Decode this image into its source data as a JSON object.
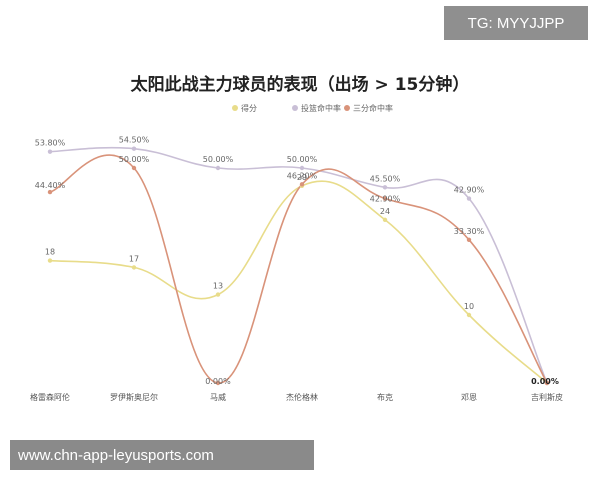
{
  "watermark_top": "TG: MYYJJPP",
  "watermark_bottom": "www.chn-app-leyusports.com",
  "chart_data": {
    "type": "line",
    "title": "太阳此战主力球员的表现（出场 > 15分钟）",
    "legend_position": "top",
    "grid": false,
    "categories": [
      "格雷森阿伦",
      "罗伊斯奥尼尔",
      "马威",
      "杰伦格林",
      "布克",
      "邓恩",
      "吉利斯皮"
    ],
    "series": [
      {
        "name": "得分",
        "color": "#e8dc8a",
        "values": [
          18,
          17,
          13,
          29,
          24,
          10,
          0
        ],
        "labels": [
          "18",
          "17",
          "13",
          "29",
          "24",
          "10",
          ""
        ]
      },
      {
        "name": "投篮命中率",
        "color": "#c9bfd6",
        "values": [
          53.8,
          54.5,
          50.0,
          50.0,
          45.5,
          42.9,
          0
        ],
        "labels": [
          "53.80%",
          "54.50%",
          "50.00%",
          "50.00%",
          "45.50%",
          "42.90%",
          ""
        ]
      },
      {
        "name": "三分命中率",
        "color": "#d9937a",
        "values": [
          44.4,
          50.0,
          0,
          46.2,
          42.9,
          33.3,
          0
        ],
        "labels": [
          "44.40%",
          "50.00%",
          "0.00%",
          "46.20%",
          "42.90%",
          "33.30%",
          "0.00%"
        ]
      }
    ]
  }
}
